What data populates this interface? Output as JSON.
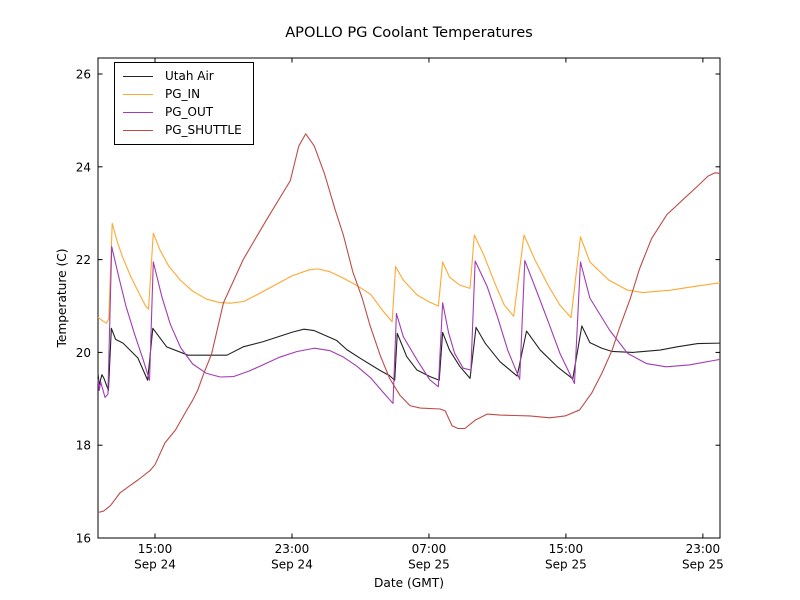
{
  "chart_data": {
    "type": "line",
    "title": "APOLLO PG Coolant Temperatures",
    "xlabel": "Date (GMT)",
    "ylabel": "Temperature (C)",
    "x_unit": "hours since Sep 24 00:00 GMT",
    "xlim": [
      11.67,
      48.0
    ],
    "ylim": [
      16,
      26.345
    ],
    "yticks": [
      16,
      18,
      20,
      22,
      24,
      26
    ],
    "xticks": [
      {
        "t": 15,
        "time": "15:00",
        "date": "Sep 24"
      },
      {
        "t": 23,
        "time": "23:00",
        "date": "Sep 24"
      },
      {
        "t": 31,
        "time": "07:00",
        "date": "Sep 25"
      },
      {
        "t": 39,
        "time": "15:00",
        "date": "Sep 25"
      },
      {
        "t": 47,
        "time": "23:00",
        "date": "Sep 25"
      }
    ],
    "grid": false,
    "legend_position": "upper left",
    "series": [
      {
        "name": "Utah Air",
        "color": "#222222",
        "points": [
          [
            11.67,
            19.55
          ],
          [
            11.74,
            19.3
          ],
          [
            11.9,
            19.52
          ],
          [
            12.02,
            19.44
          ],
          [
            12.28,
            19.18
          ],
          [
            12.45,
            20.52
          ],
          [
            12.7,
            20.28
          ],
          [
            13.13,
            20.2
          ],
          [
            14.0,
            19.88
          ],
          [
            14.57,
            19.4
          ],
          [
            14.87,
            20.52
          ],
          [
            15.68,
            20.12
          ],
          [
            16.93,
            19.94
          ],
          [
            19.2,
            19.94
          ],
          [
            20.15,
            20.12
          ],
          [
            21.3,
            20.23
          ],
          [
            23.05,
            20.44
          ],
          [
            23.7,
            20.5
          ],
          [
            24.3,
            20.47
          ],
          [
            25.6,
            20.26
          ],
          [
            26.2,
            20.06
          ],
          [
            27.0,
            19.87
          ],
          [
            28.1,
            19.62
          ],
          [
            28.7,
            19.5
          ],
          [
            29.0,
            19.4
          ],
          [
            29.15,
            20.41
          ],
          [
            29.7,
            19.91
          ],
          [
            30.3,
            19.62
          ],
          [
            31.05,
            19.48
          ],
          [
            31.6,
            19.4
          ],
          [
            31.8,
            20.43
          ],
          [
            32.2,
            20.05
          ],
          [
            32.8,
            19.7
          ],
          [
            33.4,
            19.44
          ],
          [
            33.75,
            20.54
          ],
          [
            34.3,
            20.19
          ],
          [
            35.15,
            19.8
          ],
          [
            36.15,
            19.49
          ],
          [
            36.7,
            20.46
          ],
          [
            37.5,
            20.05
          ],
          [
            38.5,
            19.69
          ],
          [
            39.4,
            19.43
          ],
          [
            39.93,
            20.57
          ],
          [
            40.4,
            20.21
          ],
          [
            41.1,
            20.09
          ],
          [
            41.7,
            20.02
          ],
          [
            42.9,
            20.0
          ],
          [
            44.5,
            20.05
          ],
          [
            45.5,
            20.12
          ],
          [
            46.7,
            20.19
          ],
          [
            48.0,
            20.2
          ]
        ]
      },
      {
        "name": "PG_IN",
        "color": "#ffa832",
        "points": [
          [
            11.67,
            20.75
          ],
          [
            11.95,
            20.68
          ],
          [
            12.15,
            20.63
          ],
          [
            12.3,
            20.72
          ],
          [
            12.5,
            22.78
          ],
          [
            12.8,
            22.38
          ],
          [
            13.1,
            22.06
          ],
          [
            13.6,
            21.62
          ],
          [
            14.1,
            21.25
          ],
          [
            14.45,
            21.0
          ],
          [
            14.62,
            20.93
          ],
          [
            14.9,
            22.57
          ],
          [
            15.3,
            22.2
          ],
          [
            15.8,
            21.86
          ],
          [
            16.5,
            21.55
          ],
          [
            17.2,
            21.32
          ],
          [
            18.0,
            21.15
          ],
          [
            18.7,
            21.08
          ],
          [
            19.4,
            21.06
          ],
          [
            20.2,
            21.1
          ],
          [
            21.0,
            21.25
          ],
          [
            22.0,
            21.45
          ],
          [
            23.0,
            21.65
          ],
          [
            24.0,
            21.78
          ],
          [
            24.5,
            21.8
          ],
          [
            25.2,
            21.74
          ],
          [
            26.0,
            21.6
          ],
          [
            26.8,
            21.44
          ],
          [
            27.6,
            21.25
          ],
          [
            28.3,
            20.9
          ],
          [
            28.85,
            20.66
          ],
          [
            29.05,
            21.85
          ],
          [
            29.5,
            21.56
          ],
          [
            30.3,
            21.24
          ],
          [
            31.05,
            21.08
          ],
          [
            31.55,
            21.0
          ],
          [
            31.8,
            21.95
          ],
          [
            32.2,
            21.62
          ],
          [
            32.8,
            21.45
          ],
          [
            33.4,
            21.38
          ],
          [
            33.65,
            22.53
          ],
          [
            34.2,
            22.1
          ],
          [
            34.85,
            21.49
          ],
          [
            35.4,
            21.02
          ],
          [
            35.95,
            20.78
          ],
          [
            36.55,
            22.53
          ],
          [
            37.2,
            21.99
          ],
          [
            38.0,
            21.42
          ],
          [
            38.65,
            21.02
          ],
          [
            39.3,
            20.75
          ],
          [
            39.85,
            22.49
          ],
          [
            40.4,
            21.95
          ],
          [
            41.5,
            21.56
          ],
          [
            42.6,
            21.34
          ],
          [
            43.5,
            21.29
          ],
          [
            45.1,
            21.34
          ],
          [
            46.65,
            21.43
          ],
          [
            48.0,
            21.5
          ]
        ]
      },
      {
        "name": "PG_OUT",
        "color": "#a03cb4",
        "points": [
          [
            11.67,
            19.42
          ],
          [
            11.74,
            19.18
          ],
          [
            11.83,
            19.36
          ],
          [
            12.08,
            19.03
          ],
          [
            12.25,
            19.1
          ],
          [
            12.47,
            22.28
          ],
          [
            12.9,
            21.6
          ],
          [
            13.3,
            21.0
          ],
          [
            13.8,
            20.4
          ],
          [
            14.3,
            19.85
          ],
          [
            14.68,
            19.4
          ],
          [
            14.9,
            21.95
          ],
          [
            15.4,
            21.2
          ],
          [
            15.9,
            20.6
          ],
          [
            16.5,
            20.1
          ],
          [
            17.2,
            19.75
          ],
          [
            18.0,
            19.55
          ],
          [
            18.8,
            19.47
          ],
          [
            19.6,
            19.48
          ],
          [
            20.5,
            19.6
          ],
          [
            21.3,
            19.73
          ],
          [
            22.3,
            19.9
          ],
          [
            23.3,
            20.02
          ],
          [
            24.3,
            20.09
          ],
          [
            25.2,
            20.04
          ],
          [
            26.0,
            19.9
          ],
          [
            26.8,
            19.7
          ],
          [
            27.6,
            19.45
          ],
          [
            28.3,
            19.15
          ],
          [
            28.9,
            18.9
          ],
          [
            29.1,
            20.84
          ],
          [
            29.5,
            20.34
          ],
          [
            30.3,
            19.84
          ],
          [
            31.05,
            19.41
          ],
          [
            31.55,
            19.26
          ],
          [
            31.8,
            21.07
          ],
          [
            32.15,
            20.42
          ],
          [
            32.5,
            19.98
          ],
          [
            33.0,
            19.66
          ],
          [
            33.45,
            19.62
          ],
          [
            33.7,
            21.97
          ],
          [
            34.4,
            21.42
          ],
          [
            35.0,
            20.77
          ],
          [
            35.6,
            20.05
          ],
          [
            36.3,
            19.42
          ],
          [
            36.6,
            21.98
          ],
          [
            37.3,
            21.31
          ],
          [
            38.0,
            20.63
          ],
          [
            38.65,
            19.98
          ],
          [
            39.5,
            19.33
          ],
          [
            39.85,
            21.95
          ],
          [
            40.4,
            21.17
          ],
          [
            41.55,
            20.48
          ],
          [
            42.6,
            19.98
          ],
          [
            43.7,
            19.76
          ],
          [
            44.85,
            19.69
          ],
          [
            46.2,
            19.73
          ],
          [
            48.0,
            19.85
          ]
        ]
      },
      {
        "name": "PG_SHUTTLE",
        "color": "#be4b48",
        "points": [
          [
            11.67,
            16.55
          ],
          [
            12.0,
            16.58
          ],
          [
            12.4,
            16.7
          ],
          [
            12.95,
            16.97
          ],
          [
            13.5,
            17.12
          ],
          [
            14.0,
            17.25
          ],
          [
            14.7,
            17.45
          ],
          [
            15.0,
            17.58
          ],
          [
            15.58,
            18.05
          ],
          [
            16.2,
            18.33
          ],
          [
            16.8,
            18.72
          ],
          [
            17.2,
            18.97
          ],
          [
            17.5,
            19.19
          ],
          [
            17.85,
            19.55
          ],
          [
            18.3,
            19.96
          ],
          [
            19.0,
            21.07
          ],
          [
            20.15,
            22.0
          ],
          [
            21.5,
            22.85
          ],
          [
            22.9,
            23.7
          ],
          [
            23.4,
            24.45
          ],
          [
            23.8,
            24.71
          ],
          [
            24.3,
            24.45
          ],
          [
            24.9,
            23.85
          ],
          [
            25.5,
            23.1
          ],
          [
            26.0,
            22.53
          ],
          [
            26.55,
            21.74
          ],
          [
            27.1,
            21.17
          ],
          [
            27.55,
            20.59
          ],
          [
            28.15,
            19.94
          ],
          [
            28.7,
            19.44
          ],
          [
            29.3,
            19.08
          ],
          [
            29.9,
            18.85
          ],
          [
            30.5,
            18.8
          ],
          [
            31.65,
            18.78
          ],
          [
            31.95,
            18.74
          ],
          [
            32.35,
            18.42
          ],
          [
            32.7,
            18.36
          ],
          [
            33.1,
            18.36
          ],
          [
            33.7,
            18.54
          ],
          [
            34.4,
            18.67
          ],
          [
            35.15,
            18.65
          ],
          [
            36.0,
            18.64
          ],
          [
            36.9,
            18.63
          ],
          [
            38.05,
            18.59
          ],
          [
            38.95,
            18.63
          ],
          [
            39.8,
            18.76
          ],
          [
            40.5,
            19.12
          ],
          [
            41.1,
            19.55
          ],
          [
            41.7,
            20.05
          ],
          [
            42.15,
            20.55
          ],
          [
            42.75,
            21.15
          ],
          [
            43.3,
            21.8
          ],
          [
            44.0,
            22.45
          ],
          [
            44.9,
            22.97
          ],
          [
            45.8,
            23.28
          ],
          [
            46.65,
            23.57
          ],
          [
            47.3,
            23.8
          ],
          [
            47.7,
            23.87
          ],
          [
            48.0,
            23.86
          ]
        ]
      }
    ]
  }
}
